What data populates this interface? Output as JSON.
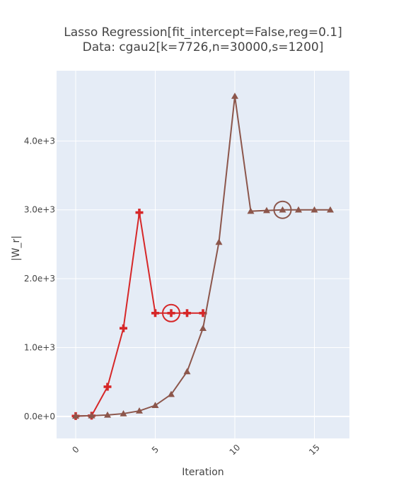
{
  "chart_data": {
    "type": "line",
    "title_line1": "Lasso Regression[fit_intercept=False,reg=0.1]",
    "title_line2": "Data: cgau2[k=7726,n=30000,s=1200]",
    "xlabel": "Iteration",
    "ylabel": "|W_r|",
    "xlim": [
      -1.2,
      17.2
    ],
    "ylim": [
      -320,
      5020
    ],
    "x_ticks": [
      0,
      5,
      10,
      15
    ],
    "x_tick_labels": [
      "0",
      "5",
      "10",
      "15"
    ],
    "y_ticks": [
      0,
      1000,
      2000,
      3000,
      4000
    ],
    "y_tick_labels": [
      "0.0e+0",
      "1.0e+3",
      "2.0e+3",
      "3.0e+3",
      "4.0e+3"
    ],
    "grid": true,
    "background": "#e5ecf6",
    "series": [
      {
        "marker": "cross",
        "color": "#d62728",
        "x": [
          0,
          1,
          2,
          3,
          4,
          5,
          6,
          7,
          8
        ],
        "y": [
          5,
          10,
          430,
          1280,
          2960,
          1500,
          1500,
          1500,
          1500
        ],
        "highlight_index": 6
      },
      {
        "marker": "triangle-up",
        "color": "#8c564b",
        "x": [
          0,
          1,
          2,
          3,
          4,
          5,
          6,
          7,
          8,
          9,
          10,
          11,
          12,
          13,
          14,
          15,
          16
        ],
        "y": [
          5,
          10,
          20,
          40,
          80,
          160,
          320,
          650,
          1280,
          2530,
          4650,
          2980,
          2990,
          3000,
          3000,
          3000,
          3000
        ],
        "highlight_index": 13
      }
    ]
  }
}
